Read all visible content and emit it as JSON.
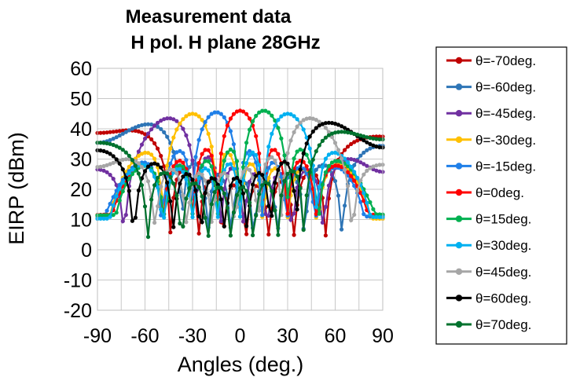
{
  "chart_data": {
    "type": "line",
    "title": [
      "Measurement data",
      "H pol. H plane 28GHz"
    ],
    "xlabel": "Angles (deg.)",
    "ylabel": "EIRP (dBm)",
    "xlim": [
      -90,
      90
    ],
    "ylim": [
      -20,
      60
    ],
    "xticks": [
      -90,
      -60,
      -30,
      0,
      30,
      60,
      90
    ],
    "yticks": [
      -20,
      -10,
      0,
      10,
      20,
      30,
      40,
      50,
      60
    ],
    "grid": true,
    "legend_position": "right",
    "series": [
      {
        "name": "θ=-70deg.",
        "color": "#c00000",
        "peak_angle": -70,
        "peak_value": 39.5
      },
      {
        "name": "θ=-60deg.",
        "color": "#2e75b6",
        "peak_angle": -58,
        "peak_value": 41.5
      },
      {
        "name": "θ=-45deg.",
        "color": "#7030a0",
        "peak_angle": -45,
        "peak_value": 43.5
      },
      {
        "name": "θ=-30deg.",
        "color": "#ffc000",
        "peak_angle": -30,
        "peak_value": 45
      },
      {
        "name": "θ=-15deg.",
        "color": "#1f7fe8",
        "peak_angle": -15,
        "peak_value": 45.5
      },
      {
        "name": "θ=0deg.",
        "color": "#ff0000",
        "peak_angle": 0,
        "peak_value": 46
      },
      {
        "name": "θ=15deg.",
        "color": "#00b050",
        "peak_angle": 15,
        "peak_value": 46
      },
      {
        "name": "θ=30deg.",
        "color": "#00b0f0",
        "peak_angle": 30,
        "peak_value": 45
      },
      {
        "name": "θ=45deg.",
        "color": "#a6a6a6",
        "peak_angle": 44,
        "peak_value": 43.5
      },
      {
        "name": "θ=60deg.",
        "color": "#000000",
        "peak_angle": 56,
        "peak_value": 42
      },
      {
        "name": "θ=70deg.",
        "color": "#00722e",
        "peak_angle": 64,
        "peak_value": 39
      }
    ]
  }
}
